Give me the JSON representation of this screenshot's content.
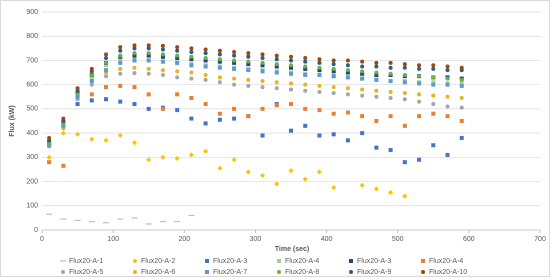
{
  "chart_data": {
    "type": "scatter",
    "x_label": "Time (sec)",
    "y_label": "Flux (kW)",
    "xlim": [
      0,
      700
    ],
    "xticks": [
      0,
      100,
      200,
      300,
      400,
      500,
      600,
      700
    ],
    "ylim": [
      0,
      900
    ],
    "yticks": [
      0,
      100,
      200,
      300,
      400,
      500,
      600,
      700,
      800,
      900
    ],
    "grid": true,
    "legend": "bottom",
    "x": [
      10,
      30,
      50,
      70,
      90,
      110,
      130,
      150,
      170,
      190,
      210,
      230,
      250,
      270,
      290,
      310,
      330,
      350,
      370,
      390,
      410,
      430,
      450,
      470,
      490,
      510,
      530,
      550,
      570,
      590
    ],
    "series": [
      {
        "name": "Flux20-A-1",
        "color": "#bfbfbf",
        "marker": "dash",
        "values": [
          65,
          45,
          40,
          35,
          30,
          45,
          50,
          25,
          35,
          35,
          60,
          null,
          null,
          null,
          null,
          null,
          null,
          null,
          null,
          null,
          null,
          null,
          null,
          null,
          null,
          null,
          null,
          null,
          null,
          null
        ]
      },
      {
        "name": "Flux20-A-2",
        "color": "#ffc000",
        "marker": "diamond",
        "values": [
          300,
          400,
          395,
          375,
          370,
          390,
          360,
          290,
          300,
          295,
          310,
          325,
          255,
          290,
          240,
          225,
          190,
          245,
          210,
          240,
          175,
          null,
          185,
          170,
          155,
          140,
          null,
          null,
          null,
          null
        ]
      },
      {
        "name": "Flux20-A-3",
        "color": "#4472c4",
        "marker": "square",
        "values": [
          350,
          430,
          520,
          535,
          540,
          530,
          520,
          500,
          505,
          495,
          460,
          440,
          455,
          460,
          470,
          390,
          520,
          410,
          430,
          390,
          395,
          370,
          400,
          340,
          330,
          280,
          290,
          350,
          310,
          380
        ]
      },
      {
        "name": "Flux20-A-4",
        "color": "#a9d18e",
        "marker": "square",
        "values": [
          355,
          440,
          560,
          630,
          680,
          700,
          705,
          700,
          695,
          690,
          685,
          680,
          675,
          670,
          665,
          660,
          655,
          650,
          645,
          640,
          635,
          630,
          625,
          620,
          615,
          615,
          610,
          610,
          605,
          605
        ]
      },
      {
        "name": "Flux20-A-3",
        "color": "#264478",
        "marker": "square",
        "values": [
          360,
          445,
          565,
          640,
          690,
          715,
          720,
          720,
          715,
          710,
          705,
          700,
          695,
          690,
          685,
          680,
          675,
          670,
          665,
          660,
          655,
          650,
          645,
          640,
          640,
          635,
          635,
          630,
          630,
          625
        ]
      },
      {
        "name": "Flux20-A-4",
        "color": "#ed7d31",
        "marker": "square",
        "values": [
          280,
          265,
          545,
          560,
          590,
          595,
          590,
          560,
          500,
          560,
          545,
          520,
          480,
          500,
          470,
          500,
          515,
          520,
          500,
          495,
          480,
          485,
          470,
          450,
          470,
          430,
          470,
          480,
          470,
          450
        ]
      },
      {
        "name": "Flux20-A-5",
        "color": "#a5a5a5",
        "marker": "circle",
        "values": [
          345,
          420,
          540,
          600,
          635,
          645,
          648,
          645,
          640,
          630,
          625,
          620,
          610,
          600,
          595,
          590,
          585,
          580,
          575,
          570,
          565,
          560,
          555,
          550,
          545,
          540,
          530,
          520,
          510,
          505
        ]
      },
      {
        "name": "Flux20-A-6",
        "color": "#e6b422",
        "marker": "circle",
        "values": [
          350,
          425,
          555,
          615,
          650,
          665,
          670,
          665,
          660,
          655,
          650,
          640,
          630,
          625,
          620,
          615,
          610,
          605,
          600,
          595,
          590,
          585,
          580,
          575,
          570,
          565,
          560,
          555,
          550,
          545
        ]
      },
      {
        "name": "Flux20-A-7",
        "color": "#5b9bd5",
        "marker": "square",
        "values": [
          350,
          430,
          550,
          615,
          660,
          690,
          700,
          700,
          695,
          690,
          680,
          675,
          670,
          665,
          660,
          655,
          650,
          645,
          640,
          640,
          635,
          630,
          625,
          620,
          615,
          610,
          605,
          600,
          600,
          595
        ]
      },
      {
        "name": "Flux20-A-8",
        "color": "#70ad47",
        "marker": "circle",
        "values": [
          360,
          440,
          560,
          640,
          690,
          720,
          730,
          730,
          725,
          720,
          715,
          710,
          705,
          700,
          695,
          690,
          685,
          680,
          675,
          670,
          665,
          660,
          655,
          650,
          645,
          640,
          635,
          630,
          625,
          620
        ]
      },
      {
        "name": "Flux20-A-9",
        "color": "#255e91",
        "marker": "circle",
        "values": [
          370,
          450,
          575,
          655,
          710,
          740,
          750,
          750,
          745,
          740,
          735,
          730,
          725,
          720,
          715,
          710,
          705,
          700,
          695,
          690,
          685,
          680,
          675,
          675,
          670,
          670,
          665,
          665,
          660,
          660
        ]
      },
      {
        "name": "Flux20-A-10",
        "color": "#9e480e",
        "marker": "circle",
        "values": [
          380,
          460,
          585,
          665,
          725,
          755,
          762,
          762,
          760,
          755,
          750,
          745,
          740,
          735,
          730,
          725,
          720,
          715,
          710,
          705,
          700,
          700,
          695,
          690,
          690,
          685,
          680,
          680,
          675,
          670
        ]
      }
    ]
  }
}
